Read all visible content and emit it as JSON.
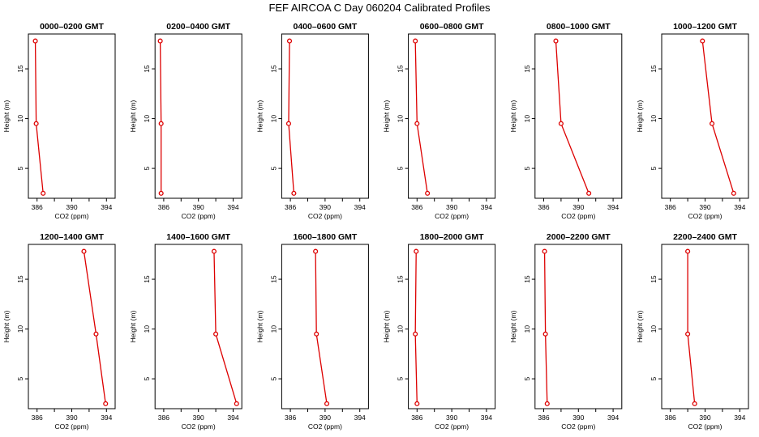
{
  "figure": {
    "title": "FEF AIRCOA C  Day 060204  Calibrated Profiles"
  },
  "chart_data": [
    {
      "type": "line",
      "title": "0000–0200 GMT",
      "xlabel": "CO2 (ppm)",
      "ylabel": "Height (m)",
      "xlim": [
        385,
        395
      ],
      "ylim": [
        2,
        18.5
      ],
      "xticks": [
        386,
        390,
        394
      ],
      "yticks": [
        5,
        10,
        15
      ],
      "x": [
        385.8,
        385.9,
        386.7
      ],
      "y": [
        17.8,
        9.5,
        2.5
      ]
    },
    {
      "type": "line",
      "title": "0200–0400 GMT",
      "xlabel": "CO2 (ppm)",
      "ylabel": "Height (m)",
      "xlim": [
        385,
        395
      ],
      "ylim": [
        2,
        18.5
      ],
      "xticks": [
        386,
        390,
        394
      ],
      "yticks": [
        5,
        10,
        15
      ],
      "x": [
        385.6,
        385.7,
        385.7
      ],
      "y": [
        17.8,
        9.5,
        2.5
      ]
    },
    {
      "type": "line",
      "title": "0400–0600 GMT",
      "xlabel": "CO2 (ppm)",
      "ylabel": "Height (m)",
      "xlim": [
        385,
        395
      ],
      "ylim": [
        2,
        18.5
      ],
      "xticks": [
        386,
        390,
        394
      ],
      "yticks": [
        5,
        10,
        15
      ],
      "x": [
        385.9,
        385.8,
        386.4
      ],
      "y": [
        17.8,
        9.5,
        2.5
      ]
    },
    {
      "type": "line",
      "title": "0600–0800 GMT",
      "xlabel": "CO2 (ppm)",
      "ylabel": "Height (m)",
      "xlim": [
        385,
        395
      ],
      "ylim": [
        2,
        18.5
      ],
      "xticks": [
        386,
        390,
        394
      ],
      "yticks": [
        5,
        10,
        15
      ],
      "x": [
        385.8,
        386.0,
        387.2
      ],
      "y": [
        17.8,
        9.5,
        2.5
      ]
    },
    {
      "type": "line",
      "title": "0800–1000 GMT",
      "xlabel": "CO2 (ppm)",
      "ylabel": "Height (m)",
      "xlim": [
        385,
        395
      ],
      "ylim": [
        2,
        18.5
      ],
      "xticks": [
        386,
        390,
        394
      ],
      "yticks": [
        5,
        10,
        15
      ],
      "x": [
        387.4,
        388.0,
        391.2
      ],
      "y": [
        17.8,
        9.5,
        2.5
      ]
    },
    {
      "type": "line",
      "title": "1000–1200 GMT",
      "xlabel": "CO2 (ppm)",
      "ylabel": "Height (m)",
      "xlim": [
        385,
        395
      ],
      "ylim": [
        2,
        18.5
      ],
      "xticks": [
        386,
        390,
        394
      ],
      "yticks": [
        5,
        10,
        15
      ],
      "x": [
        389.7,
        390.8,
        393.3
      ],
      "y": [
        17.8,
        9.5,
        2.5
      ]
    },
    {
      "type": "line",
      "title": "1200–1400 GMT",
      "xlabel": "CO2 (ppm)",
      "ylabel": "Height (m)",
      "xlim": [
        385,
        395
      ],
      "ylim": [
        2,
        18.5
      ],
      "xticks": [
        386,
        390,
        394
      ],
      "yticks": [
        5,
        10,
        15
      ],
      "x": [
        391.4,
        392.8,
        393.9
      ],
      "y": [
        17.8,
        9.5,
        2.5
      ]
    },
    {
      "type": "line",
      "title": "1400–1600 GMT",
      "xlabel": "CO2 (ppm)",
      "ylabel": "Height (m)",
      "xlim": [
        385,
        395
      ],
      "ylim": [
        2,
        18.5
      ],
      "xticks": [
        386,
        390,
        394
      ],
      "yticks": [
        5,
        10,
        15
      ],
      "x": [
        391.8,
        392.0,
        394.4
      ],
      "y": [
        17.8,
        9.5,
        2.5
      ]
    },
    {
      "type": "line",
      "title": "1600–1800 GMT",
      "xlabel": "CO2 (ppm)",
      "ylabel": "Height (m)",
      "xlim": [
        385,
        395
      ],
      "ylim": [
        2,
        18.5
      ],
      "xticks": [
        386,
        390,
        394
      ],
      "yticks": [
        5,
        10,
        15
      ],
      "x": [
        388.9,
        389.0,
        390.2
      ],
      "y": [
        17.8,
        9.5,
        2.5
      ]
    },
    {
      "type": "line",
      "title": "1800–2000 GMT",
      "xlabel": "CO2 (ppm)",
      "ylabel": "Height (m)",
      "xlim": [
        385,
        395
      ],
      "ylim": [
        2,
        18.5
      ],
      "xticks": [
        386,
        390,
        394
      ],
      "yticks": [
        5,
        10,
        15
      ],
      "x": [
        385.9,
        385.8,
        386.0
      ],
      "y": [
        17.8,
        9.5,
        2.5
      ]
    },
    {
      "type": "line",
      "title": "2000–2200 GMT",
      "xlabel": "CO2 (ppm)",
      "ylabel": "Height (m)",
      "xlim": [
        385,
        395
      ],
      "ylim": [
        2,
        18.5
      ],
      "xticks": [
        386,
        390,
        394
      ],
      "yticks": [
        5,
        10,
        15
      ],
      "x": [
        386.1,
        386.2,
        386.4
      ],
      "y": [
        17.8,
        9.5,
        2.5
      ]
    },
    {
      "type": "line",
      "title": "2200–2400 GMT",
      "xlabel": "CO2 (ppm)",
      "ylabel": "Height (m)",
      "xlim": [
        385,
        395
      ],
      "ylim": [
        2,
        18.5
      ],
      "xticks": [
        386,
        390,
        394
      ],
      "yticks": [
        5,
        10,
        15
      ],
      "x": [
        388.0,
        388.0,
        388.8
      ],
      "y": [
        17.8,
        9.5,
        2.5
      ]
    }
  ],
  "colors": {
    "series": "#dd0000",
    "axes": "#000000",
    "background": "#ffffff"
  }
}
